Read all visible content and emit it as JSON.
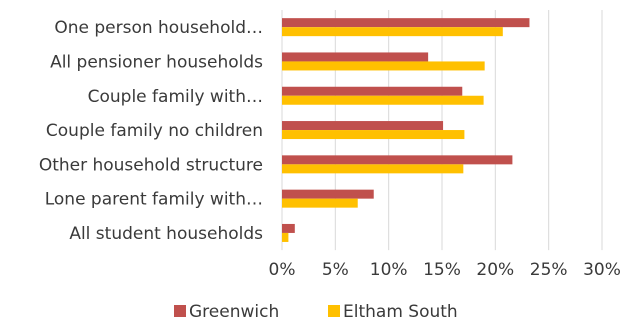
{
  "chart_data": {
    "type": "bar",
    "orientation": "horizontal",
    "categories": [
      "One person household…",
      "All pensioner households",
      "Couple family with…",
      "Couple family no children",
      "Other household structure",
      "Lone parent family with…",
      "All student households"
    ],
    "series": [
      {
        "name": "Greenwich",
        "color": "#C0504D",
        "values": [
          23.2,
          13.7,
          16.9,
          15.1,
          21.6,
          8.6,
          1.2
        ]
      },
      {
        "name": "Eltham South",
        "color": "#FFC000",
        "values": [
          20.7,
          19.0,
          18.9,
          17.1,
          17.0,
          7.1,
          0.6
        ]
      }
    ],
    "xlim": [
      0,
      30
    ],
    "x_ticks": [
      "0%",
      "5%",
      "10%",
      "15%",
      "20%",
      "25%",
      "30%"
    ],
    "grid": true,
    "legend_position": "bottom",
    "title": "",
    "xlabel": "",
    "ylabel": ""
  }
}
